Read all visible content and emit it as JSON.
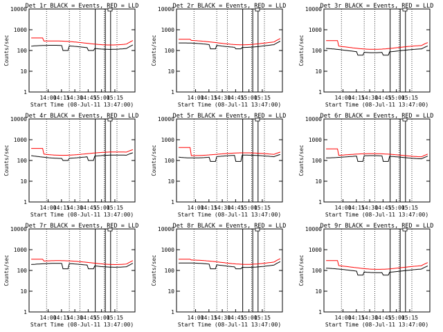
{
  "chart_data": [
    {
      "type": "line",
      "title": "Det 1r BLACK = Events, RED = LLD",
      "xlabel": "Start Time (08-Jul-11 13:47:00)",
      "ylabel": "Counts/sec",
      "yscale": "log",
      "ylim": [
        1,
        10000
      ],
      "yticks": [
        "1",
        "10",
        "100",
        "1000",
        "10000"
      ],
      "xticks": [
        "14:00",
        "14:15",
        "14:30",
        "14:45",
        "15:00",
        "15:15"
      ],
      "series": [
        {
          "name": "Events",
          "color": "#000000",
          "base": 160,
          "low": 100
        },
        {
          "name": "LLD",
          "color": "#ff0000",
          "base": 260,
          "start": 400
        }
      ]
    },
    {
      "type": "line",
      "title": "Det 2r BLACK = Events, RED = LLD",
      "xlabel": "Start Time (08-Jul-11 13:47:00)",
      "ylabel": "Counts/sec",
      "yscale": "log",
      "ylim": [
        1,
        10000
      ],
      "yticks": [
        "1",
        "10",
        "100",
        "1000",
        "10000"
      ],
      "xticks": [
        "14:00",
        "14:15",
        "14:30",
        "14:45",
        "15:00",
        "15:15"
      ],
      "series": [
        {
          "name": "Events",
          "color": "#000000",
          "base": 200,
          "low": 120
        },
        {
          "name": "LLD",
          "color": "#ff0000",
          "base": 270,
          "start": 350
        }
      ]
    },
    {
      "type": "line",
      "title": "Det 3r BLACK = Events, RED = LLD",
      "xlabel": "Start Time (08-Jul-11 13:47:00)",
      "ylabel": "Counts/sec",
      "yscale": "log",
      "ylim": [
        1,
        10000
      ],
      "yticks": [
        "1",
        "10",
        "100",
        "1000",
        "10000"
      ],
      "xticks": [
        "14:00",
        "14:15",
        "14:30",
        "14:45",
        "15:00",
        "15:15"
      ],
      "series": [
        {
          "name": "Events",
          "color": "#000000",
          "base": 110,
          "low": 60
        },
        {
          "name": "LLD",
          "color": "#ff0000",
          "base": 160,
          "start": 300
        }
      ]
    },
    {
      "type": "line",
      "title": "Det 4r BLACK = Events, RED = LLD",
      "xlabel": "Start Time (08-Jul-11 13:47:00)",
      "ylabel": "Counts/sec",
      "yscale": "log",
      "ylim": [
        1,
        10000
      ],
      "yticks": [
        "1",
        "10",
        "100",
        "1000",
        "10000"
      ],
      "xticks": [
        "14:00",
        "14:15",
        "14:30",
        "14:45",
        "15:00",
        "15:15"
      ],
      "series": [
        {
          "name": "Events",
          "color": "#000000",
          "base": 170,
          "low": 100
        },
        {
          "name": "LLD",
          "color": "#ff0000",
          "base": 240,
          "start": 380
        }
      ]
    },
    {
      "type": "line",
      "title": "Det 5r BLACK = Events, RED = LLD",
      "xlabel": "Start Time (08-Jul-11 13:47:00)",
      "ylabel": "Counts/sec",
      "yscale": "log",
      "ylim": [
        1,
        10000
      ],
      "yticks": [
        "1",
        "10",
        "100",
        "1000",
        "10000"
      ],
      "xticks": [
        "14:00",
        "14:15",
        "14:30",
        "14:45",
        "15:00",
        "15:15"
      ],
      "series": [
        {
          "name": "Events",
          "color": "#000000",
          "base": 170,
          "low": 90
        },
        {
          "name": "LLD",
          "color": "#ff0000",
          "base": 220,
          "start": 420
        }
      ]
    },
    {
      "type": "line",
      "title": "Det 6r BLACK = Events, RED = LLD",
      "xlabel": "Start Time (08-Jul-11 13:47:00)",
      "ylabel": "Counts/sec",
      "yscale": "log",
      "ylim": [
        1,
        10000
      ],
      "yticks": [
        "1",
        "10",
        "100",
        "1000",
        "10000"
      ],
      "xticks": [
        "14:00",
        "14:15",
        "14:30",
        "14:45",
        "15:00",
        "15:15"
      ],
      "series": [
        {
          "name": "Events",
          "color": "#000000",
          "base": 160,
          "low": 90
        },
        {
          "name": "LLD",
          "color": "#ff0000",
          "base": 200,
          "start": 360
        }
      ]
    },
    {
      "type": "line",
      "title": "Det 7r BLACK = Events, RED = LLD",
      "xlabel": "Start Time (08-Jul-11 13:47:00)",
      "ylabel": "Counts/sec",
      "yscale": "log",
      "ylim": [
        1,
        10000
      ],
      "yticks": [
        "1",
        "10",
        "100",
        "1000",
        "10000"
      ],
      "xticks": [
        "14:00",
        "14:15",
        "14:30",
        "14:45",
        "15:00",
        "15:15"
      ],
      "series": [
        {
          "name": "Events",
          "color": "#000000",
          "base": 200,
          "low": 120
        },
        {
          "name": "LLD",
          "color": "#ff0000",
          "base": 270,
          "start": 350
        }
      ]
    },
    {
      "type": "line",
      "title": "Det 8r BLACK = Events, RED = LLD",
      "xlabel": "Start Time (08-Jul-11 13:47:00)",
      "ylabel": "Counts/sec",
      "yscale": "log",
      "ylim": [
        1,
        10000
      ],
      "yticks": [
        "1",
        "10",
        "100",
        "1000",
        "10000"
      ],
      "xticks": [
        "14:00",
        "14:15",
        "14:30",
        "14:45",
        "15:00",
        "15:15"
      ],
      "series": [
        {
          "name": "Events",
          "color": "#000000",
          "base": 200,
          "low": 120
        },
        {
          "name": "LLD",
          "color": "#ff0000",
          "base": 280,
          "start": 350
        }
      ]
    },
    {
      "type": "line",
      "title": "Det 9r BLACK = Events, RED = LLD",
      "xlabel": "Start Time (08-Jul-11 13:47:00)",
      "ylabel": "Counts/sec",
      "yscale": "log",
      "ylim": [
        1,
        10000
      ],
      "yticks": [
        "1",
        "10",
        "100",
        "1000",
        "10000"
      ],
      "xticks": [
        "14:00",
        "14:15",
        "14:30",
        "14:45",
        "15:00",
        "15:15"
      ],
      "series": [
        {
          "name": "Events",
          "color": "#000000",
          "base": 110,
          "low": 60
        },
        {
          "name": "LLD",
          "color": "#ff0000",
          "base": 160,
          "start": 300
        }
      ]
    }
  ]
}
